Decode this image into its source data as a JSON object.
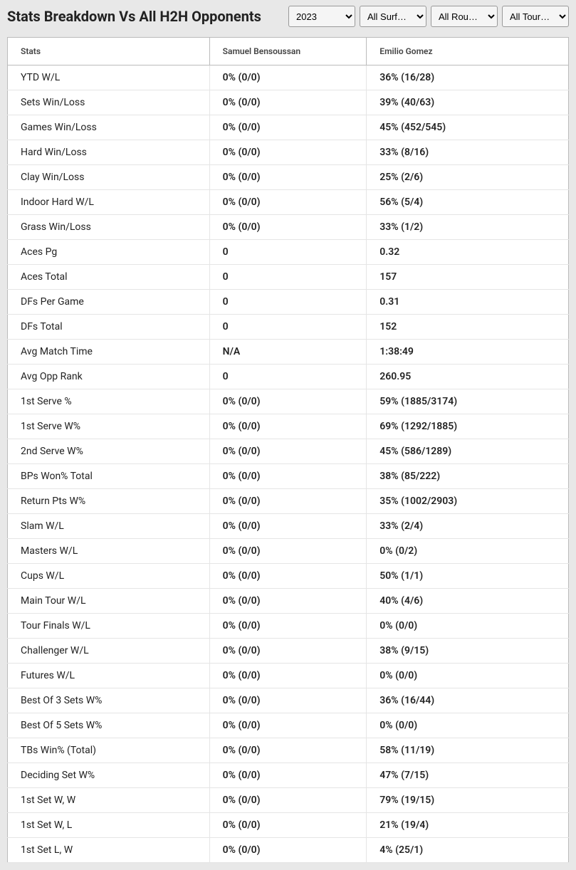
{
  "header": {
    "title": "Stats Breakdown Vs All H2H Opponents",
    "filters": {
      "year": "2023",
      "surface": "All Surf…",
      "round": "All Rou…",
      "tour": "All Tour…"
    }
  },
  "table": {
    "columns": {
      "stats": "Stats",
      "player1": "Samuel Bensoussan",
      "player2": "Emilio Gomez"
    },
    "column_widths": {
      "stats": "36%",
      "p1": "28%",
      "p2": "36%"
    },
    "styling": {
      "background_color": "#ffffff",
      "border_color": "#bbbbbb",
      "row_border_color": "#e5e5e5",
      "header_font_size": 12,
      "cell_font_size": 14,
      "page_background": "#e8e8e8"
    },
    "rows": [
      {
        "stat": "YTD W/L",
        "p1": "0% (0/0)",
        "p2": "36% (16/28)"
      },
      {
        "stat": "Sets Win/Loss",
        "p1": "0% (0/0)",
        "p2": "39% (40/63)"
      },
      {
        "stat": "Games Win/Loss",
        "p1": "0% (0/0)",
        "p2": "45% (452/545)"
      },
      {
        "stat": "Hard Win/Loss",
        "p1": "0% (0/0)",
        "p2": "33% (8/16)"
      },
      {
        "stat": "Clay Win/Loss",
        "p1": "0% (0/0)",
        "p2": "25% (2/6)"
      },
      {
        "stat": "Indoor Hard W/L",
        "p1": "0% (0/0)",
        "p2": "56% (5/4)"
      },
      {
        "stat": "Grass Win/Loss",
        "p1": "0% (0/0)",
        "p2": "33% (1/2)"
      },
      {
        "stat": "Aces Pg",
        "p1": "0",
        "p2": "0.32"
      },
      {
        "stat": "Aces Total",
        "p1": "0",
        "p2": "157"
      },
      {
        "stat": "DFs Per Game",
        "p1": "0",
        "p2": "0.31"
      },
      {
        "stat": "DFs Total",
        "p1": "0",
        "p2": "152"
      },
      {
        "stat": "Avg Match Time",
        "p1": "N/A",
        "p2": "1:38:49"
      },
      {
        "stat": "Avg Opp Rank",
        "p1": "0",
        "p2": "260.95"
      },
      {
        "stat": "1st Serve %",
        "p1": "0% (0/0)",
        "p2": "59% (1885/3174)"
      },
      {
        "stat": "1st Serve W%",
        "p1": "0% (0/0)",
        "p2": "69% (1292/1885)"
      },
      {
        "stat": "2nd Serve W%",
        "p1": "0% (0/0)",
        "p2": "45% (586/1289)"
      },
      {
        "stat": "BPs Won% Total",
        "p1": "0% (0/0)",
        "p2": "38% (85/222)"
      },
      {
        "stat": "Return Pts W%",
        "p1": "0% (0/0)",
        "p2": "35% (1002/2903)"
      },
      {
        "stat": "Slam W/L",
        "p1": "0% (0/0)",
        "p2": "33% (2/4)"
      },
      {
        "stat": "Masters W/L",
        "p1": "0% (0/0)",
        "p2": "0% (0/2)"
      },
      {
        "stat": "Cups W/L",
        "p1": "0% (0/0)",
        "p2": "50% (1/1)"
      },
      {
        "stat": "Main Tour W/L",
        "p1": "0% (0/0)",
        "p2": "40% (4/6)"
      },
      {
        "stat": "Tour Finals W/L",
        "p1": "0% (0/0)",
        "p2": "0% (0/0)"
      },
      {
        "stat": "Challenger W/L",
        "p1": "0% (0/0)",
        "p2": "38% (9/15)"
      },
      {
        "stat": "Futures W/L",
        "p1": "0% (0/0)",
        "p2": "0% (0/0)"
      },
      {
        "stat": "Best Of 3 Sets W%",
        "p1": "0% (0/0)",
        "p2": "36% (16/44)"
      },
      {
        "stat": "Best Of 5 Sets W%",
        "p1": "0% (0/0)",
        "p2": "0% (0/0)"
      },
      {
        "stat": "TBs Win% (Total)",
        "p1": "0% (0/0)",
        "p2": "58% (11/19)"
      },
      {
        "stat": "Deciding Set W%",
        "p1": "0% (0/0)",
        "p2": "47% (7/15)"
      },
      {
        "stat": "1st Set W, W",
        "p1": "0% (0/0)",
        "p2": "79% (19/15)"
      },
      {
        "stat": "1st Set W, L",
        "p1": "0% (0/0)",
        "p2": "21% (19/4)"
      },
      {
        "stat": "1st Set L, W",
        "p1": "0% (0/0)",
        "p2": "4% (25/1)"
      }
    ]
  }
}
